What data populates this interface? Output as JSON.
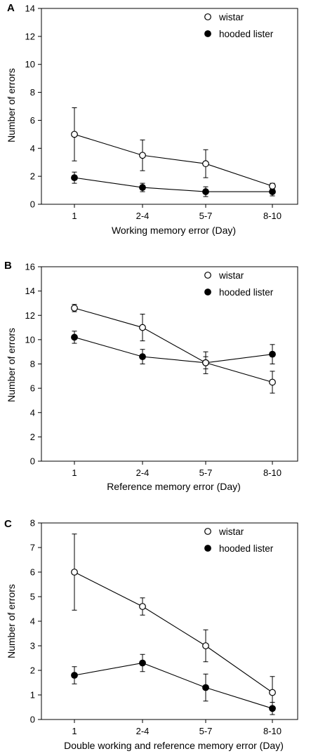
{
  "chart_data": [
    {
      "type": "line",
      "panel": "A",
      "categories": [
        "1",
        "2-4",
        "5-7",
        "8-10"
      ],
      "xlabel": "Working memory error (Day)",
      "ylabel": "Number of errors",
      "ylim": [
        0,
        14
      ],
      "yticks": [
        "0",
        "2",
        "4",
        "6",
        "8",
        "10",
        "12",
        "14"
      ],
      "legend_position": "top-right",
      "series": [
        {
          "name": "wistar",
          "marker": "open-circle",
          "values": [
            5.0,
            3.5,
            2.9,
            1.3
          ],
          "err": [
            1.9,
            1.1,
            1.0,
            0.2
          ]
        },
        {
          "name": "hooded lister",
          "marker": "filled-circle",
          "values": [
            1.9,
            1.2,
            0.9,
            0.9
          ],
          "err": [
            0.4,
            0.3,
            0.35,
            0.3
          ]
        }
      ]
    },
    {
      "type": "line",
      "panel": "B",
      "categories": [
        "1",
        "2-4",
        "5-7",
        "8-10"
      ],
      "xlabel": "Reference memory error (Day)",
      "ylabel": "Number of errors",
      "ylim": [
        0,
        16
      ],
      "yticks": [
        "0",
        "2",
        "4",
        "6",
        "8",
        "10",
        "12",
        "14",
        "16"
      ],
      "legend_position": "top-right",
      "series": [
        {
          "name": "wistar",
          "marker": "open-circle",
          "values": [
            12.6,
            11.0,
            8.1,
            6.5
          ],
          "err": [
            0.3,
            1.1,
            0.9,
            0.9
          ]
        },
        {
          "name": "hooded lister",
          "marker": "filled-circle",
          "values": [
            10.2,
            8.6,
            8.1,
            8.8
          ],
          "err": [
            0.5,
            0.6,
            0.5,
            0.8
          ]
        }
      ]
    },
    {
      "type": "line",
      "panel": "C",
      "categories": [
        "1",
        "2-4",
        "5-7",
        "8-10"
      ],
      "xlabel": "Double working and reference memory error (Day)",
      "ylabel": "Number of errors",
      "ylim": [
        0,
        8
      ],
      "yticks": [
        "0",
        "1",
        "2",
        "3",
        "4",
        "5",
        "6",
        "7",
        "8"
      ],
      "legend_position": "top-right",
      "series": [
        {
          "name": "wistar",
          "marker": "open-circle",
          "values": [
            6.0,
            4.6,
            3.0,
            1.1
          ],
          "err": [
            1.55,
            0.35,
            0.65,
            0.65
          ]
        },
        {
          "name": "hooded lister",
          "marker": "filled-circle",
          "values": [
            1.8,
            2.3,
            1.3,
            0.45
          ],
          "err": [
            0.35,
            0.35,
            0.55,
            0.25
          ]
        }
      ]
    }
  ]
}
